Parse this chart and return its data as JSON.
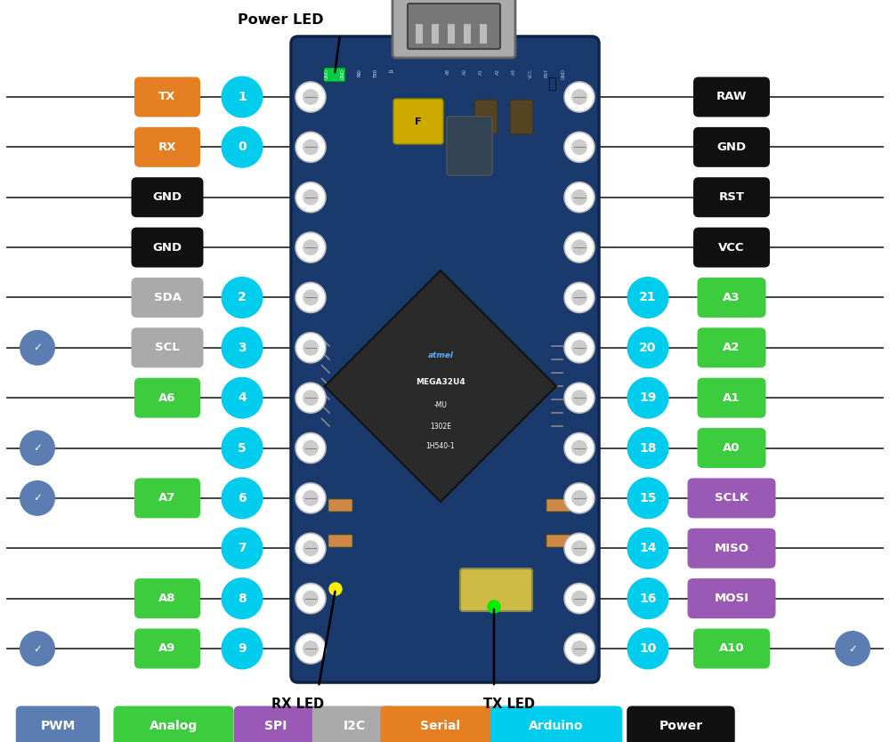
{
  "fig_width": 10.0,
  "fig_height": 8.34,
  "bg_color": "#ffffff",
  "board_color": "#1a3a6e",
  "colors": {
    "pwm": "#5b7db1",
    "analog": "#3dcc3d",
    "spi": "#9b59b6",
    "i2c": "#aaaaaa",
    "serial": "#e67e22",
    "arduino": "#00ccee",
    "power": "#111111",
    "line": "#222222"
  },
  "left_data": [
    {
      "pin": "1",
      "label": "TX",
      "label_bg": "#e67e22",
      "pwm": false
    },
    {
      "pin": "0",
      "label": "RX",
      "label_bg": "#e67e22",
      "pwm": false
    },
    {
      "pin": "",
      "label": "GND",
      "label_bg": "#111111",
      "pwm": false
    },
    {
      "pin": "",
      "label": "GND",
      "label_bg": "#111111",
      "pwm": false
    },
    {
      "pin": "2",
      "label": "SDA",
      "label_bg": "#aaaaaa",
      "pwm": false
    },
    {
      "pin": "3",
      "label": "SCL",
      "label_bg": "#aaaaaa",
      "pwm": true
    },
    {
      "pin": "4",
      "label": "A6",
      "label_bg": "#3dcc3d",
      "pwm": false
    },
    {
      "pin": "5",
      "label": "",
      "label_bg": "",
      "pwm": true
    },
    {
      "pin": "6",
      "label": "A7",
      "label_bg": "#3dcc3d",
      "pwm": true
    },
    {
      "pin": "7",
      "label": "",
      "label_bg": "",
      "pwm": false
    },
    {
      "pin": "8",
      "label": "A8",
      "label_bg": "#3dcc3d",
      "pwm": false
    },
    {
      "pin": "9",
      "label": "A9",
      "label_bg": "#3dcc3d",
      "pwm": true
    }
  ],
  "right_data": [
    {
      "pin": "",
      "label": "RAW",
      "label_bg": "#111111",
      "pwm": false
    },
    {
      "pin": "",
      "label": "GND",
      "label_bg": "#111111",
      "pwm": false
    },
    {
      "pin": "",
      "label": "RST",
      "label_bg": "#111111",
      "pwm": false
    },
    {
      "pin": "",
      "label": "VCC",
      "label_bg": "#111111",
      "pwm": false
    },
    {
      "pin": "21",
      "label": "A3",
      "label_bg": "#3dcc3d",
      "pwm": false
    },
    {
      "pin": "20",
      "label": "A2",
      "label_bg": "#3dcc3d",
      "pwm": false
    },
    {
      "pin": "19",
      "label": "A1",
      "label_bg": "#3dcc3d",
      "pwm": false
    },
    {
      "pin": "18",
      "label": "A0",
      "label_bg": "#3dcc3d",
      "pwm": false
    },
    {
      "pin": "15",
      "label": "SCLK",
      "label_bg": "#9b59b6",
      "pwm": false
    },
    {
      "pin": "14",
      "label": "MISO",
      "label_bg": "#9b59b6",
      "pwm": false
    },
    {
      "pin": "16",
      "label": "MOSI",
      "label_bg": "#9b59b6",
      "pwm": false
    },
    {
      "pin": "10",
      "label": "A10",
      "label_bg": "#3dcc3d",
      "pwm": true
    }
  ],
  "legend": [
    {
      "text": "PWM",
      "bg": "#5b7db1",
      "fg": "#ffffff"
    },
    {
      "text": "Analog",
      "bg": "#3dcc3d",
      "fg": "#ffffff"
    },
    {
      "text": "SPI",
      "bg": "#9b59b6",
      "fg": "#ffffff"
    },
    {
      "text": "I2C",
      "bg": "#aaaaaa",
      "fg": "#ffffff"
    },
    {
      "text": "Serial",
      "bg": "#e67e22",
      "fg": "#ffffff"
    },
    {
      "text": "Arduino",
      "bg": "#00ccee",
      "fg": "#ffffff"
    },
    {
      "text": "Power",
      "bg": "#111111",
      "fg": "#ffffff"
    }
  ]
}
